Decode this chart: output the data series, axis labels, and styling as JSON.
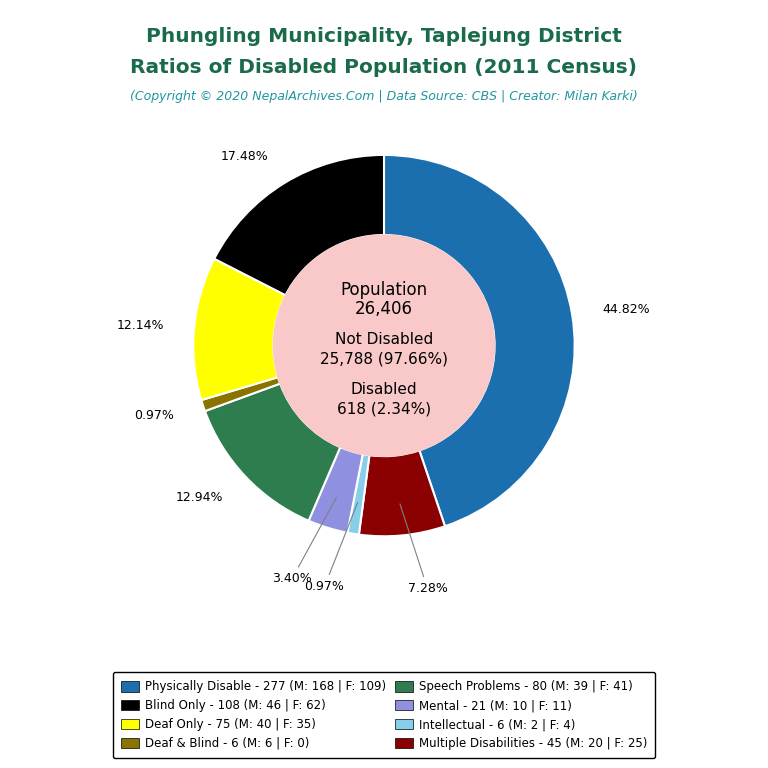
{
  "title_line1": "Phungling Municipality, Taplejung District",
  "title_line2": "Ratios of Disabled Population (2011 Census)",
  "subtitle": "(Copyright © 2020 NepalArchives.Com | Data Source: CBS | Creator: Milan Karki)",
  "title_color": "#1a6b4a",
  "subtitle_color": "#2196a0",
  "center_circle_color": "#f9c8c8",
  "outer_values": [
    277,
    45,
    6,
    21,
    80,
    6,
    75,
    108
  ],
  "outer_colors": [
    "#1b6faf",
    "#8b0000",
    "#87ceeb",
    "#9090e0",
    "#2e7d4f",
    "#8b7300",
    "#ffff00",
    "#000000"
  ],
  "outer_labels_text": [
    "44.82%",
    "7.28%",
    "0.97%",
    "3.40%",
    "12.94%",
    "0.97%",
    "12.14%",
    "17.48%"
  ],
  "label_arrow_indices": [
    1,
    2,
    3
  ],
  "legend_items_left": [
    {
      "label": "Physically Disable - 277 (M: 168 | F: 109)",
      "color": "#1b6faf"
    },
    {
      "label": "Deaf Only - 75 (M: 40 | F: 35)",
      "color": "#ffff00"
    },
    {
      "label": "Speech Problems - 80 (M: 39 | F: 41)",
      "color": "#2e7d4f"
    },
    {
      "label": "Intellectual - 6 (M: 2 | F: 4)",
      "color": "#87ceeb"
    }
  ],
  "legend_items_right": [
    {
      "label": "Blind Only - 108 (M: 46 | F: 62)",
      "color": "#000000"
    },
    {
      "label": "Deaf & Blind - 6 (M: 6 | F: 0)",
      "color": "#8b7300"
    },
    {
      "label": "Mental - 21 (M: 10 | F: 11)",
      "color": "#9090e0"
    },
    {
      "label": "Multiple Disabilities - 45 (M: 20 | F: 25)",
      "color": "#8b0000"
    }
  ],
  "background_color": "#ffffff"
}
